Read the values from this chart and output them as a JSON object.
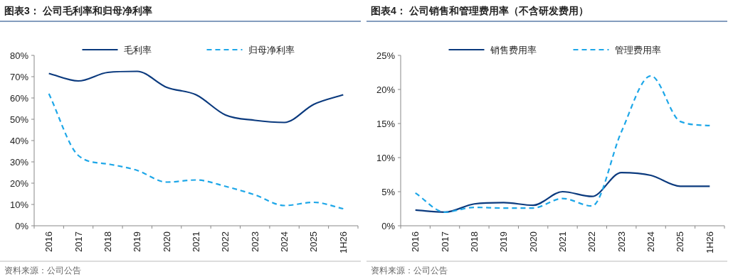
{
  "chart_data": [
    {
      "type": "line",
      "title": "图表3：  公司毛利率和归母净利率",
      "categories": [
        "2016",
        "2017",
        "2018",
        "2019",
        "2020",
        "2021",
        "2022",
        "2023",
        "2024",
        "2025",
        "1H26"
      ],
      "series": [
        {
          "name": "毛利率",
          "color": "#0b3a7e",
          "line_style": "solid",
          "values": [
            71.5,
            68,
            72,
            72.5,
            65,
            61.5,
            52,
            49.5,
            48.5,
            57,
            61.5
          ]
        },
        {
          "name": "归母净利率",
          "color": "#1ea7e8",
          "line_style": "dashed",
          "values": [
            62,
            33,
            29,
            26,
            20.5,
            21.5,
            18.5,
            14.5,
            9.5,
            11,
            8
          ]
        }
      ],
      "ylim": [
        0,
        80
      ],
      "yticks": [
        {
          "value": 0,
          "label": "0%"
        },
        {
          "value": 10,
          "label": "10%"
        },
        {
          "value": 20,
          "label": "20%"
        },
        {
          "value": 30,
          "label": "30%"
        },
        {
          "value": 40,
          "label": "40%"
        },
        {
          "value": 50,
          "label": "50%"
        },
        {
          "value": 60,
          "label": "60%"
        },
        {
          "value": 70,
          "label": "70%"
        },
        {
          "value": 80,
          "label": "80%"
        }
      ],
      "legend": "top",
      "grid": false,
      "annotations": [
        "资料来源：公司公告"
      ]
    },
    {
      "type": "line",
      "title": "图表4：  公司销售和管理费用率（不含研发费用）",
      "categories": [
        "2016",
        "2017",
        "2018",
        "2019",
        "2020",
        "2021",
        "2022",
        "2023",
        "2024",
        "2025",
        "1H26"
      ],
      "series": [
        {
          "name": "销售费用率",
          "color": "#0b3a7e",
          "line_style": "solid",
          "values": [
            2.3,
            2.0,
            3.2,
            3.4,
            3.0,
            5.0,
            4.3,
            7.8,
            7.4,
            5.8,
            5.8
          ]
        },
        {
          "name": "管理费用率",
          "color": "#1ea7e8",
          "line_style": "dashed",
          "values": [
            4.8,
            2.0,
            2.7,
            2.6,
            2.6,
            4.0,
            2.9,
            13.8,
            22.0,
            15.3,
            14.7
          ]
        }
      ],
      "ylim": [
        0,
        25
      ],
      "yticks": [
        {
          "value": 0,
          "label": "0%"
        },
        {
          "value": 5,
          "label": "5%"
        },
        {
          "value": 10,
          "label": "10%"
        },
        {
          "value": 15,
          "label": "15%"
        },
        {
          "value": 20,
          "label": "20%"
        },
        {
          "value": 25,
          "label": "25%"
        }
      ],
      "legend": "top",
      "grid": false,
      "annotations": [
        "资料来源：公司公告"
      ]
    }
  ]
}
